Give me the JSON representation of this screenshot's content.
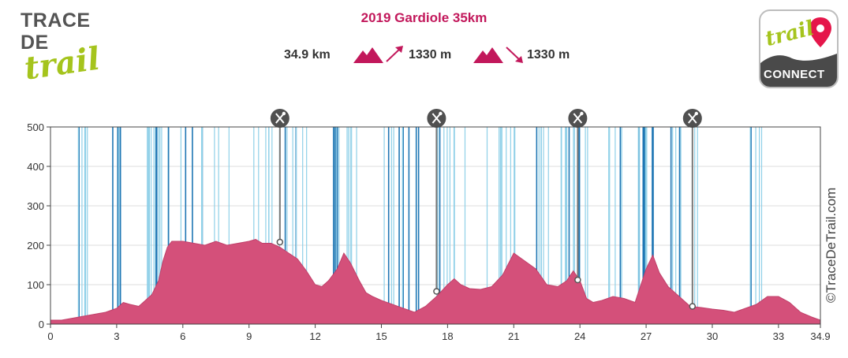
{
  "header": {
    "title": "2019 Gardiole 35km",
    "distance": "34.9 km",
    "ascent": "1330 m",
    "descent": "1330 m"
  },
  "logo_left": {
    "line1": "TRACE",
    "line2": "DE",
    "line3": "trail"
  },
  "logo_right": {
    "word1": "trail",
    "word2": "CONNECT"
  },
  "copyright": "©TraceDeTrail.com",
  "colors": {
    "area_fill": "#d4507a",
    "title": "#c2185b",
    "bar_light": "#8fd0e8",
    "bar_dark": "#1f77b4",
    "logo_green": "#a5c41d"
  },
  "icons": {
    "aid_station": "fork-knife-icon",
    "climb": "mountain-up-icon",
    "descent": "mountain-down-icon"
  },
  "chart_data": {
    "type": "area",
    "xlabel": "",
    "ylabel": "",
    "xlim": [
      0,
      34.9
    ],
    "ylim": [
      0,
      500
    ],
    "x_ticks": [
      "0",
      "3",
      "6",
      "9",
      "12",
      "15",
      "18",
      "21",
      "24",
      "27",
      "30",
      "33",
      "34.9"
    ],
    "x_tick_values": [
      0,
      3,
      6,
      9,
      12,
      15,
      18,
      21,
      24,
      27,
      30,
      33,
      34.9
    ],
    "y_ticks": [
      "0",
      "100",
      "200",
      "300",
      "400",
      "500"
    ],
    "y_tick_values": [
      0,
      100,
      200,
      300,
      400,
      500
    ],
    "grid": true,
    "series": [
      {
        "x": [
          0,
          0.5,
          1,
          1.5,
          2,
          2.5,
          3,
          3.3,
          3.6,
          4,
          4.3,
          4.6,
          4.9,
          5.1,
          5.3,
          5.5,
          6,
          6.5,
          7,
          7.5,
          8,
          8.5,
          9,
          9.3,
          9.6,
          10,
          10.4,
          10.8,
          11.2,
          11.6,
          12,
          12.3,
          12.6,
          13,
          13.3,
          13.6,
          14,
          14.3,
          14.6,
          15,
          15.5,
          16,
          16.5,
          17,
          17.5,
          18,
          18.3,
          18.6,
          19,
          19.5,
          20,
          20.5,
          21,
          21.5,
          22,
          22.5,
          23,
          23.4,
          23.7,
          24,
          24.3,
          24.6,
          25,
          25.5,
          26,
          26.5,
          27,
          27.3,
          27.6,
          28,
          28.4,
          28.7,
          29,
          29.5,
          30,
          30.5,
          31,
          31.5,
          32,
          32.5,
          33,
          33.5,
          34,
          34.5,
          34.9
        ],
        "y": [
          10,
          10,
          15,
          20,
          25,
          30,
          40,
          55,
          50,
          45,
          60,
          75,
          110,
          160,
          195,
          210,
          210,
          205,
          200,
          210,
          200,
          205,
          210,
          215,
          205,
          205,
          195,
          180,
          165,
          135,
          100,
          95,
          110,
          140,
          180,
          155,
          110,
          80,
          70,
          60,
          50,
          40,
          30,
          45,
          70,
          100,
          115,
          100,
          90,
          88,
          95,
          125,
          180,
          160,
          140,
          100,
          95,
          110,
          135,
          110,
          65,
          55,
          60,
          70,
          65,
          55,
          140,
          175,
          130,
          95,
          75,
          60,
          45,
          42,
          38,
          35,
          30,
          40,
          50,
          70,
          70,
          55,
          30,
          18,
          10
        ],
        "waypoints_x": [
          10.4,
          17.5,
          23.9,
          29.1
        ],
        "waypoints_y": [
          208,
          83,
          112,
          45
        ]
      }
    ]
  }
}
